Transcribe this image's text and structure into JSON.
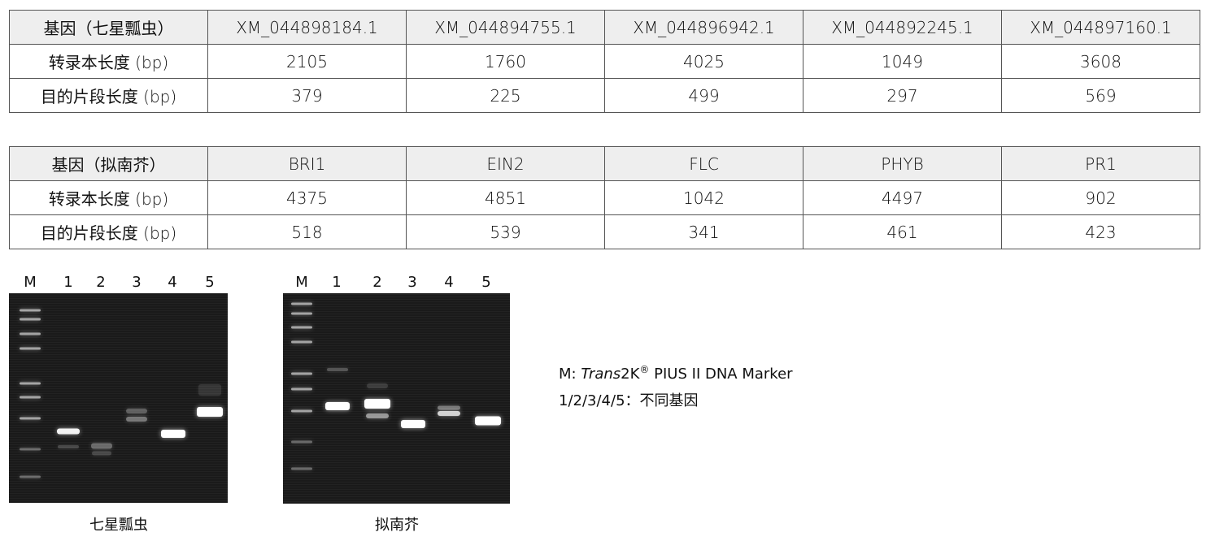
{
  "tables": [
    {
      "header": [
        "基因（七星瓢虫）",
        "XM_044898184.1",
        "XM_044894755.1",
        "XM_044896942.1",
        "XM_044892245.1",
        "XM_044897160.1"
      ],
      "rows": [
        [
          "转录本长度 (bp)",
          "2105",
          "1760",
          "4025",
          "1049",
          "3608"
        ],
        [
          "目的片段长度 (bp)",
          "379",
          "225",
          "499",
          "297",
          "569"
        ]
      ]
    },
    {
      "header": [
        "基因（拟南芥）",
        "BRI1",
        "EIN2",
        "FLC",
        "PHYB",
        "PR1"
      ],
      "rows": [
        [
          "转录本长度 (bp)",
          "4375",
          "4851",
          "1042",
          "4497",
          "902"
        ],
        [
          "目的片段长度 (bp)",
          "518",
          "539",
          "341",
          "461",
          "423"
        ]
      ]
    }
  ],
  "gels": [
    {
      "lanes": [
        "M",
        "1",
        "2",
        "3",
        "4",
        "5"
      ],
      "caption": "七星瓢虫"
    },
    {
      "lanes": [
        "M",
        "1",
        "2",
        "3",
        "4",
        "5"
      ],
      "caption": "拟南芥"
    }
  ],
  "legend": {
    "line1_prefix": "M: ",
    "line1_italic": "Trans",
    "line1_mid": "2K",
    "line1_sup": "®",
    "line1_suffix": " PIUS II DNA Marker",
    "line2": "1/2/3/4/5：不同基因"
  }
}
